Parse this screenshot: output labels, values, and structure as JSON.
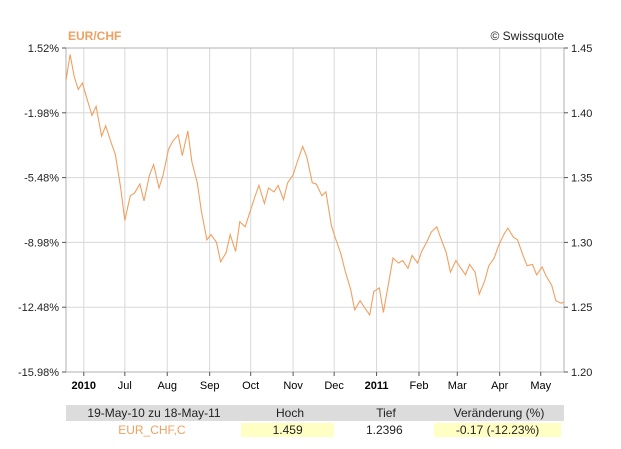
{
  "header": {
    "title": "EUR/CHF",
    "copyright": "© Swissquote"
  },
  "colors": {
    "line": "#f0a060",
    "title": "#f0a060",
    "grid": "#d8d8d8",
    "axis": "#000000",
    "table_header": "#dcdcdc",
    "highlight": "#ffffc4"
  },
  "chart_data": {
    "type": "line",
    "title": "EUR/CHF",
    "x_tick_labels": [
      "2010",
      "Jul",
      "Aug",
      "Sep",
      "Oct",
      "Nov",
      "Dec",
      "2011",
      "Feb",
      "Mar",
      "Apr",
      "May"
    ],
    "x_tick_dates": [
      "2010-06-01",
      "2010-07-01",
      "2010-08-01",
      "2010-09-01",
      "2010-10-01",
      "2010-11-01",
      "2010-12-01",
      "2011-01-01",
      "2011-02-01",
      "2011-03-01",
      "2011-04-01",
      "2011-05-01"
    ],
    "x_range": [
      "2010-05-19",
      "2011-05-18"
    ],
    "y_left_ticks": [
      "1.52%",
      "-1.98%",
      "-5.48%",
      "-8.98%",
      "-12.48%",
      "-15.98%"
    ],
    "y_right_ticks": [
      "1.45",
      "1.40",
      "1.35",
      "1.30",
      "1.25",
      "1.20"
    ],
    "y_right_values": [
      1.45,
      1.4,
      1.35,
      1.3,
      1.25,
      1.2
    ],
    "ylim": [
      1.2,
      1.45
    ],
    "grid": true,
    "series": [
      {
        "x": [
          "2010-05-19",
          "2010-05-22",
          "2010-05-25",
          "2010-05-28",
          "2010-05-31",
          "2010-06-03",
          "2010-06-07",
          "2010-06-10",
          "2010-06-14",
          "2010-06-17",
          "2010-06-21",
          "2010-06-24",
          "2010-06-28",
          "2010-07-01",
          "2010-07-05",
          "2010-07-08",
          "2010-07-12",
          "2010-07-15",
          "2010-07-19",
          "2010-07-22",
          "2010-07-26",
          "2010-07-29",
          "2010-08-02",
          "2010-08-05",
          "2010-08-09",
          "2010-08-12",
          "2010-08-16",
          "2010-08-19",
          "2010-08-23",
          "2010-08-26",
          "2010-08-30",
          "2010-09-02",
          "2010-09-06",
          "2010-09-09",
          "2010-09-13",
          "2010-09-16",
          "2010-09-20",
          "2010-09-23",
          "2010-09-27",
          "2010-09-30",
          "2010-10-04",
          "2010-10-07",
          "2010-10-11",
          "2010-10-14",
          "2010-10-18",
          "2010-10-21",
          "2010-10-25",
          "2010-10-28",
          "2010-11-01",
          "2010-11-04",
          "2010-11-08",
          "2010-11-11",
          "2010-11-15",
          "2010-11-18",
          "2010-11-22",
          "2010-11-25",
          "2010-11-29",
          "2010-12-02",
          "2010-12-06",
          "2010-12-09",
          "2010-12-13",
          "2010-12-16",
          "2010-12-20",
          "2010-12-23",
          "2010-12-27",
          "2010-12-30",
          "2011-01-03",
          "2011-01-06",
          "2011-01-10",
          "2011-01-13",
          "2011-01-17",
          "2011-01-20",
          "2011-01-24",
          "2011-01-27",
          "2011-01-31",
          "2011-02-03",
          "2011-02-07",
          "2011-02-10",
          "2011-02-14",
          "2011-02-17",
          "2011-02-21",
          "2011-02-24",
          "2011-02-28",
          "2011-03-03",
          "2011-03-07",
          "2011-03-10",
          "2011-03-14",
          "2011-03-17",
          "2011-03-21",
          "2011-03-24",
          "2011-03-28",
          "2011-03-31",
          "2011-04-04",
          "2011-04-07",
          "2011-04-11",
          "2011-04-14",
          "2011-04-18",
          "2011-04-21",
          "2011-04-25",
          "2011-04-28",
          "2011-05-02",
          "2011-05-05",
          "2011-05-09",
          "2011-05-12",
          "2011-05-16",
          "2011-05-18"
        ],
        "y": [
          1.425,
          1.445,
          1.428,
          1.418,
          1.423,
          1.412,
          1.398,
          1.405,
          1.382,
          1.39,
          1.377,
          1.368,
          1.342,
          1.317,
          1.336,
          1.338,
          1.345,
          1.332,
          1.352,
          1.36,
          1.342,
          1.352,
          1.372,
          1.378,
          1.383,
          1.367,
          1.386,
          1.362,
          1.346,
          1.324,
          1.302,
          1.306,
          1.3,
          1.285,
          1.292,
          1.306,
          1.293,
          1.316,
          1.312,
          1.322,
          1.335,
          1.344,
          1.33,
          1.342,
          1.339,
          1.344,
          1.333,
          1.346,
          1.352,
          1.362,
          1.374,
          1.366,
          1.346,
          1.345,
          1.336,
          1.339,
          1.313,
          1.303,
          1.291,
          1.278,
          1.264,
          1.248,
          1.255,
          1.25,
          1.244,
          1.262,
          1.265,
          1.246,
          1.27,
          1.288,
          1.284,
          1.286,
          1.28,
          1.29,
          1.284,
          1.293,
          1.301,
          1.308,
          1.312,
          1.303,
          1.292,
          1.277,
          1.286,
          1.281,
          1.275,
          1.283,
          1.277,
          1.26,
          1.27,
          1.282,
          1.288,
          1.297,
          1.306,
          1.311,
          1.304,
          1.302,
          1.29,
          1.282,
          1.283,
          1.275,
          1.281,
          1.274,
          1.267,
          1.255,
          1.253,
          1.254
        ]
      }
    ]
  },
  "summary": {
    "range_label": "19-May-10 zu 18-May-11",
    "high_label": "Hoch",
    "low_label": "Tief",
    "change_label": "Veränderung (%)",
    "instrument": "EUR_CHF,C",
    "high_value": "1.459",
    "low_value": "1.2396",
    "change_value": "-0.17 (-12.23%)"
  }
}
